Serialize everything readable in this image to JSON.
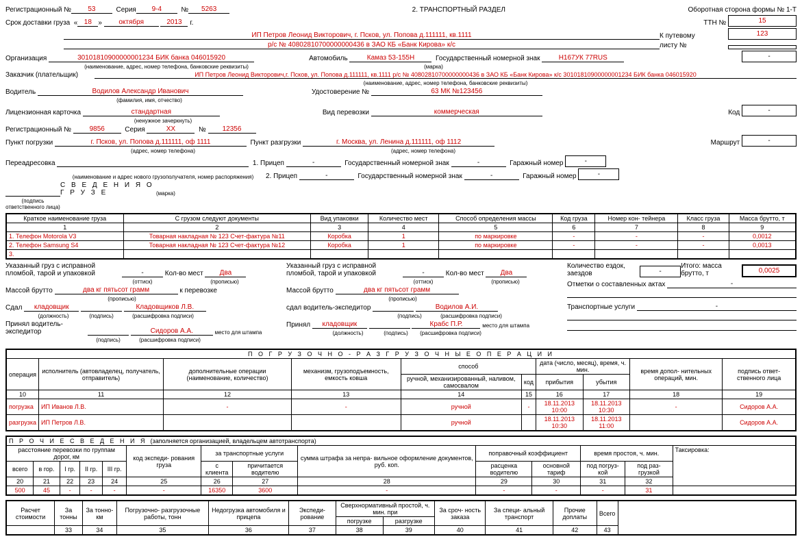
{
  "header": {
    "section_title": "2. ТРАНСПОРТНЫЙ РАЗДЕЛ",
    "form_side": "Оборотная сторона формы № 1-Т",
    "reg_no_label": "Регистрационный №",
    "reg_no": "53",
    "series_label": "Серия",
    "series": "9-4",
    "num_label": "№",
    "num": "5263",
    "delivery_label": "Срок доставки груза",
    "delivery_day": "18",
    "delivery_month": "октября",
    "delivery_year": "2013",
    "year_suffix": "г.",
    "ttn_label": "ТТН №",
    "ttn": "15",
    "waybill_label": "К путевому",
    "waybill": "123",
    "list_label": "листу №"
  },
  "org": {
    "text1": "ИП Петров Леонид Викторович, г. Псков, ул. Попова  д.111111, кв.1111",
    "text2": "р/с № 40802810700000000436 в ЗАО КБ «Банк Кирова» к/с",
    "text3": "30101810900000001234 БИК банка 046015920",
    "org_label": "Организация",
    "org_sub": "(наименование, адрес, номер телефона, банковские реквизиты)",
    "auto_label": "Автомобиль",
    "auto_value": "Камаз 53-155Н",
    "auto_sub": "(марка)",
    "gov_plate_label": "Государственный номерной знак",
    "gov_plate": "Н167УК 77RUS",
    "dash": "-"
  },
  "customer": {
    "label": "Заказчик (плательщик)",
    "text": "ИП Петров Леонид Викторович,г. Псков, ул. Попова  д.111111, кв.1111  р/с № 40802810700000000436 в   ЗАО КБ «Банк Кирова» к/с 30101810900000001234   БИК банка 046015920",
    "sub": "(наименование, адрес, номер телефона, банковские реквизиты)"
  },
  "driver": {
    "label": "Водитель",
    "name": "Водилов Александр Иванович",
    "sub": "(фамилия, имя, отчество)",
    "cert_label": "Удостоверение №",
    "cert": "63 МК №123456"
  },
  "license": {
    "label": "Лицензионная карточка",
    "value": "стандартная",
    "sub": "(ненужное зачеркнуть)",
    "transport_type_label": "Вид перевозки",
    "transport_type": "коммерческая",
    "code_label": "Код",
    "code": "-"
  },
  "reg2": {
    "label": "Регистрационный №",
    "num": "9856",
    "series_label": "Серия",
    "series": "ХХ",
    "num2_label": "№",
    "num2": "12356"
  },
  "loading": {
    "label": "Пункт погрузки",
    "value": "г. Псков, ул. Попова д.111111, оф 1111",
    "sub": "(адрес, номер телефона)",
    "unload_label": "Пункт разгрузки",
    "unload_value": "г. Москва, ул. Ленина д.111111, оф 1112",
    "route_label": "Маршрут",
    "route": "-"
  },
  "readdress": {
    "label": "Переадресовка",
    "sub": "(наименование и адрес нового грузополучателя, номер распоряжения)",
    "trailer1_label": "1. Прицеп",
    "trailer2_label": "2. Прицеп",
    "trailer_val": "-",
    "marka_sub": "(марка)",
    "gov_label": "Государственный номерной знак",
    "gov_val": "-",
    "garage_label": "Гаражный номер",
    "garage_val": "-",
    "sign_sub": "(подпись ответственного лица)"
  },
  "cargo": {
    "title": "С В Е Д Е Н И Я   О   Г Р У З Е",
    "headers": [
      "Краткое наименование груза",
      "С грузом следуют документы",
      "Вид упаковки",
      "Количество мест",
      "Способ определения массы",
      "Код груза",
      "Номер кон-\nтейнера",
      "Класс груза",
      "Масса брутто,\nт"
    ],
    "nums": [
      "1",
      "2",
      "3",
      "4",
      "5",
      "6",
      "7",
      "8",
      "9"
    ],
    "rows": [
      {
        "n": "1.",
        "name": "Телефон Motorola V3",
        "docs": "Товарная накладная № 123 Счет-фактура №11",
        "pack": "Коробка",
        "qty": "1",
        "method": "по маркировке",
        "code": "-",
        "cont": "-",
        "cls": "-",
        "mass": "0,0012"
      },
      {
        "n": "2.",
        "name": "Телефон Samsung S4",
        "docs": "Товарная накладная № 123 Счет-фактура №12",
        "pack": "Коробка",
        "qty": "1",
        "method": "по маркировке",
        "code": "-",
        "cont": "-",
        "cls": "-",
        "mass": "0,0013"
      },
      {
        "n": "3.",
        "name": "",
        "docs": "",
        "pack": "",
        "qty": "",
        "method": "",
        "code": "",
        "cont": "",
        "cls": "",
        "mass": ""
      }
    ]
  },
  "block": {
    "cargo_ok_label": "Указанный груз с исправной пломбой, тарой и упаковкой",
    "dash": "-",
    "stamp_sub": "(оттиск)",
    "qty_label": "Кол-во мест",
    "qty_val": "Два",
    "prop_sub": "(прописью)",
    "trips_label": "Количество ездок, заездов",
    "trips_val": "-",
    "total_label": "Итого: масса брутто, т",
    "total_val": "0,0025",
    "mass_label": "Массой брутто",
    "mass_val": "два кг пятьсот грамм",
    "transport_label": "к перевозке",
    "handed_label": "Сдал",
    "position": "кладовщик",
    "position_sub": "(должность)",
    "sign_sub": "(подпись)",
    "name1": "Кладовщиков Л.В.",
    "name_sub": "(расшифровка подписи)",
    "accepted_label": "Принял водитель-экспедитор",
    "name2": "Сидоров А.А.",
    "stamp_place": "место для штампа",
    "handed_driver_label": "сдал водитель-экспедитор",
    "name3": "Водилов А.И.",
    "accepted2_label": "Принял",
    "name4": "Крабс П.Р.",
    "acts_label": "Отметки о составленных актах",
    "acts_val": "-",
    "services_label": "Транспортные услуги",
    "services_val": "-"
  },
  "ops": {
    "title": "П О Г Р У З О Ч Н О - Р А З Г Р У З О Ч Н Ы Е   О П Е Р А Ц И И",
    "h_op": "операция",
    "h_exec": "исполнитель (автовладелец, получатель, отправитель)",
    "h_addl": "дополнительные операции (наименование, количество)",
    "h_mech": "механизм, грузоподъемность, емкость ковша",
    "h_method": "способ",
    "h_method_sub": "ручной, механизированный, наливом, самосвалом",
    "h_code": "код",
    "h_date": "дата (число, месяц), время, ч. мин.",
    "h_arrival": "прибытия",
    "h_departure": "убытия",
    "h_extra": "время допол-\nнительных операций, мин.",
    "h_sign": "подпись ответ-\nственного лица",
    "nums": [
      "10",
      "11",
      "12",
      "13",
      "14",
      "15",
      "16",
      "17",
      "18",
      "19"
    ],
    "rows": [
      {
        "op": "погрузка",
        "exec": "ИП Иванов Л.В.",
        "addl": "-",
        "mech": "-",
        "method": "ручной",
        "code": "-",
        "arr": "18.11.2013 10:00",
        "dep": "18.11.2013 10:30",
        "extra": "-",
        "sign": "Сидоров А.А."
      },
      {
        "op": "разгрузка",
        "exec": "ИП Петров Л.В.",
        "addl": "",
        "mech": "",
        "method": "ручной",
        "code": "",
        "arr": "18.11.2013 10:30",
        "dep": "18.11.2013 11:00",
        "extra": "",
        "sign": "Сидоров А.А."
      }
    ]
  },
  "misc": {
    "title": "П Р О Ч И Е   С В Е Д Е Н И Я",
    "title_sub": "(заполняется организацией, владельцем автотранспорта)",
    "h_dist": "расстояние перевозки по группам дорог, км",
    "h_all": "всего",
    "h_city": "в гор.",
    "h_g1": "I гр.",
    "h_g2": "II гр.",
    "h_g3": "III гр.",
    "h_code": "код экспеди-\nрования груза",
    "h_trans": "за транспортные услуги",
    "h_client": "с клиента",
    "h_driver": "причитается водителю",
    "h_fine": "сумма штрафа за непра-\nвильное оформление документов, руб. коп.",
    "h_coef": "поправочный коэффициент",
    "h_rate": "расценка водителю",
    "h_tariff": "основной тариф",
    "h_idle": "время простоя, ч. мин.",
    "h_load": "под погруз-\nкой",
    "h_unload": "под раз-\nгрузкой",
    "h_tax": "Таксировка:",
    "nums": [
      "20",
      "21",
      "22",
      "23",
      "24",
      "25",
      "26",
      "27",
      "28",
      "29",
      "30",
      "31",
      "32"
    ],
    "row": {
      "all": "500",
      "city": "45",
      "g1": "-",
      "g2": "-",
      "g3": "-",
      "code": "-",
      "client": "16350",
      "driver": "3600",
      "fine": "-",
      "rate": "-",
      "tariff": "-",
      "load": "-",
      "unload": "31"
    }
  },
  "cost": {
    "h_calc": "Расчет стоимости",
    "h_tons": "За тонны",
    "h_tkm": "За тонно-\nкм",
    "h_work": "Погрузочно-\nразгрузочные работы, тонн",
    "h_under": "Недогрузка автомобиля и прицепа",
    "h_exp": "Экспеди-\nрование",
    "h_over": "Сверхнормативный простой, ч. мин. при",
    "h_oload": "погрузке",
    "h_ounload": "разгрузке",
    "h_urgent": "За сроч-\nность заказа",
    "h_spec": "За специ-\nальный транспорт",
    "h_other": "Прочие доплаты",
    "h_total": "Всего",
    "nums": [
      "33",
      "34",
      "35",
      "36",
      "37",
      "38",
      "39",
      "40",
      "41",
      "42",
      "43"
    ]
  }
}
